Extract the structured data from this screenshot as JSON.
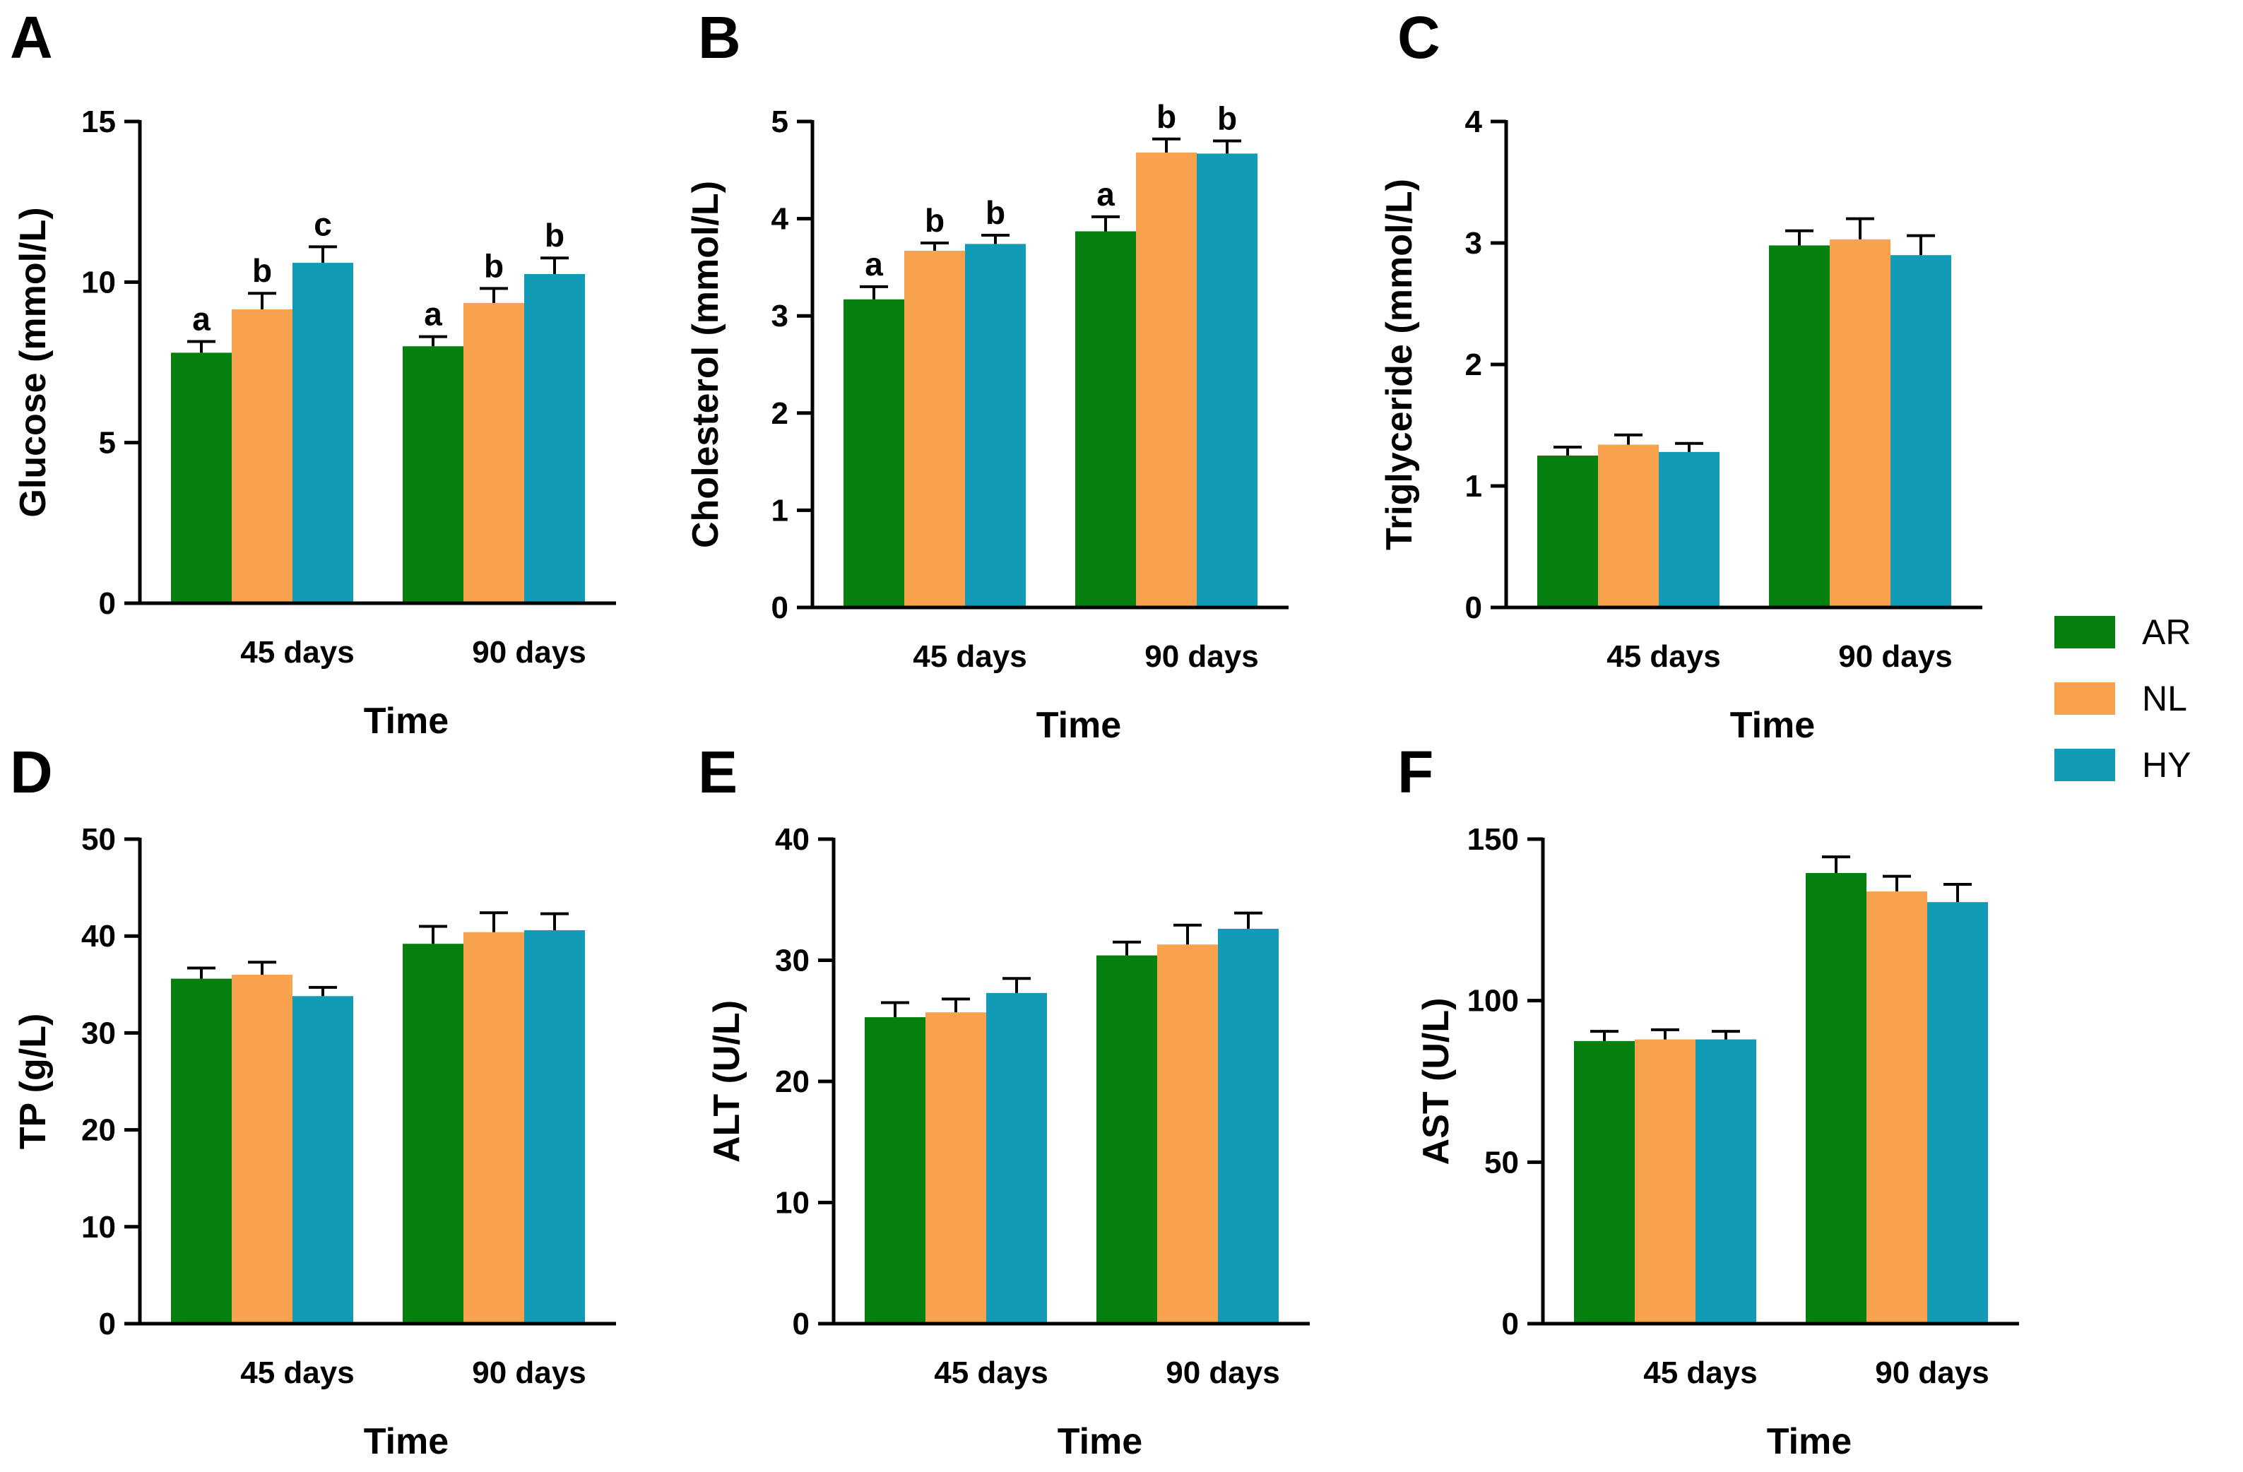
{
  "colors": {
    "AR": "#05800e",
    "NL": "#f9a24d",
    "HY": "#129bb6",
    "axis": "#000000"
  },
  "legend": [
    {
      "key": "AR",
      "label": "AR"
    },
    {
      "key": "NL",
      "label": "NL"
    },
    {
      "key": "HY",
      "label": "HY"
    }
  ],
  "chart_data": [
    {
      "panel": "A",
      "type": "bar",
      "title": "",
      "xlabel": "Time",
      "ylabel": "Glucose (mmol/L)",
      "categories": [
        "45 days",
        "90 days"
      ],
      "ylim": [
        0,
        15
      ],
      "yticks": [
        0,
        5,
        10,
        15
      ],
      "series": [
        {
          "name": "AR",
          "values": [
            7.8,
            8.0
          ],
          "errors": [
            0.35,
            0.3
          ],
          "labels": [
            "a",
            "a"
          ]
        },
        {
          "name": "NL",
          "values": [
            9.15,
            9.35
          ],
          "errors": [
            0.5,
            0.45
          ],
          "labels": [
            "b",
            "b"
          ]
        },
        {
          "name": "HY",
          "values": [
            10.6,
            10.25
          ],
          "errors": [
            0.5,
            0.5
          ],
          "labels": [
            "c",
            "b"
          ]
        }
      ]
    },
    {
      "panel": "B",
      "type": "bar",
      "title": "",
      "xlabel": "Time",
      "ylabel": "Cholesterol (mmol/L)",
      "categories": [
        "45 days",
        "90 days"
      ],
      "ylim": [
        0,
        5
      ],
      "yticks": [
        0,
        1,
        2,
        3,
        4,
        5
      ],
      "series": [
        {
          "name": "AR",
          "values": [
            3.17,
            3.87
          ],
          "errors": [
            0.13,
            0.15
          ],
          "labels": [
            "a",
            "a"
          ]
        },
        {
          "name": "NL",
          "values": [
            3.67,
            4.68
          ],
          "errors": [
            0.08,
            0.14
          ],
          "labels": [
            "b",
            "b"
          ]
        },
        {
          "name": "HY",
          "values": [
            3.74,
            4.67
          ],
          "errors": [
            0.09,
            0.13
          ],
          "labels": [
            "b",
            "b"
          ]
        }
      ]
    },
    {
      "panel": "C",
      "type": "bar",
      "title": "",
      "xlabel": "Time",
      "ylabel": "Triglyceride (mmol/L)",
      "categories": [
        "45 days",
        "90 days"
      ],
      "ylim": [
        0,
        4
      ],
      "yticks": [
        0,
        1,
        2,
        3,
        4
      ],
      "series": [
        {
          "name": "AR",
          "values": [
            1.25,
            2.98
          ],
          "errors": [
            0.07,
            0.12
          ],
          "labels": [
            "",
            ""
          ]
        },
        {
          "name": "NL",
          "values": [
            1.34,
            3.03
          ],
          "errors": [
            0.08,
            0.17
          ],
          "labels": [
            "",
            ""
          ]
        },
        {
          "name": "HY",
          "values": [
            1.28,
            2.9
          ],
          "errors": [
            0.07,
            0.16
          ],
          "labels": [
            "",
            ""
          ]
        }
      ]
    },
    {
      "panel": "D",
      "type": "bar",
      "title": "",
      "xlabel": "Time",
      "ylabel": "TP (g/L)",
      "categories": [
        "45 days",
        "90 days"
      ],
      "ylim": [
        0,
        50
      ],
      "yticks": [
        0,
        10,
        20,
        30,
        40,
        50
      ],
      "series": [
        {
          "name": "AR",
          "values": [
            35.6,
            39.2
          ],
          "errors": [
            1.1,
            1.8
          ],
          "labels": [
            "",
            ""
          ]
        },
        {
          "name": "NL",
          "values": [
            36.0,
            40.4
          ],
          "errors": [
            1.3,
            2.0
          ],
          "labels": [
            "",
            ""
          ]
        },
        {
          "name": "HY",
          "values": [
            33.8,
            40.6
          ],
          "errors": [
            0.9,
            1.7
          ],
          "labels": [
            "",
            ""
          ]
        }
      ]
    },
    {
      "panel": "E",
      "type": "bar",
      "title": "",
      "xlabel": "Time",
      "ylabel": "ALT (U/L)",
      "categories": [
        "45 days",
        "90 days"
      ],
      "ylim": [
        0,
        40
      ],
      "yticks": [
        0,
        10,
        20,
        30,
        40
      ],
      "series": [
        {
          "name": "AR",
          "values": [
            25.3,
            30.4
          ],
          "errors": [
            1.2,
            1.1
          ],
          "labels": [
            "",
            ""
          ]
        },
        {
          "name": "NL",
          "values": [
            25.7,
            31.3
          ],
          "errors": [
            1.1,
            1.6
          ],
          "labels": [
            "",
            ""
          ]
        },
        {
          "name": "HY",
          "values": [
            27.3,
            32.6
          ],
          "errors": [
            1.2,
            1.3
          ],
          "labels": [
            "",
            ""
          ]
        }
      ]
    },
    {
      "panel": "F",
      "type": "bar",
      "title": "",
      "xlabel": "Time",
      "ylabel": "AST (U/L)",
      "categories": [
        "45 days",
        "90 days"
      ],
      "ylim": [
        0,
        150
      ],
      "yticks": [
        0,
        50,
        100,
        150
      ],
      "series": [
        {
          "name": "AR",
          "values": [
            87.5,
            139.5
          ],
          "errors": [
            3.0,
            5.0
          ],
          "labels": [
            "",
            ""
          ]
        },
        {
          "name": "NL",
          "values": [
            88.0,
            133.8
          ],
          "errors": [
            3.0,
            4.7
          ],
          "labels": [
            "",
            ""
          ]
        },
        {
          "name": "HY",
          "values": [
            88.0,
            130.5
          ],
          "errors": [
            2.5,
            5.5
          ],
          "labels": [
            "",
            ""
          ]
        }
      ]
    }
  ]
}
